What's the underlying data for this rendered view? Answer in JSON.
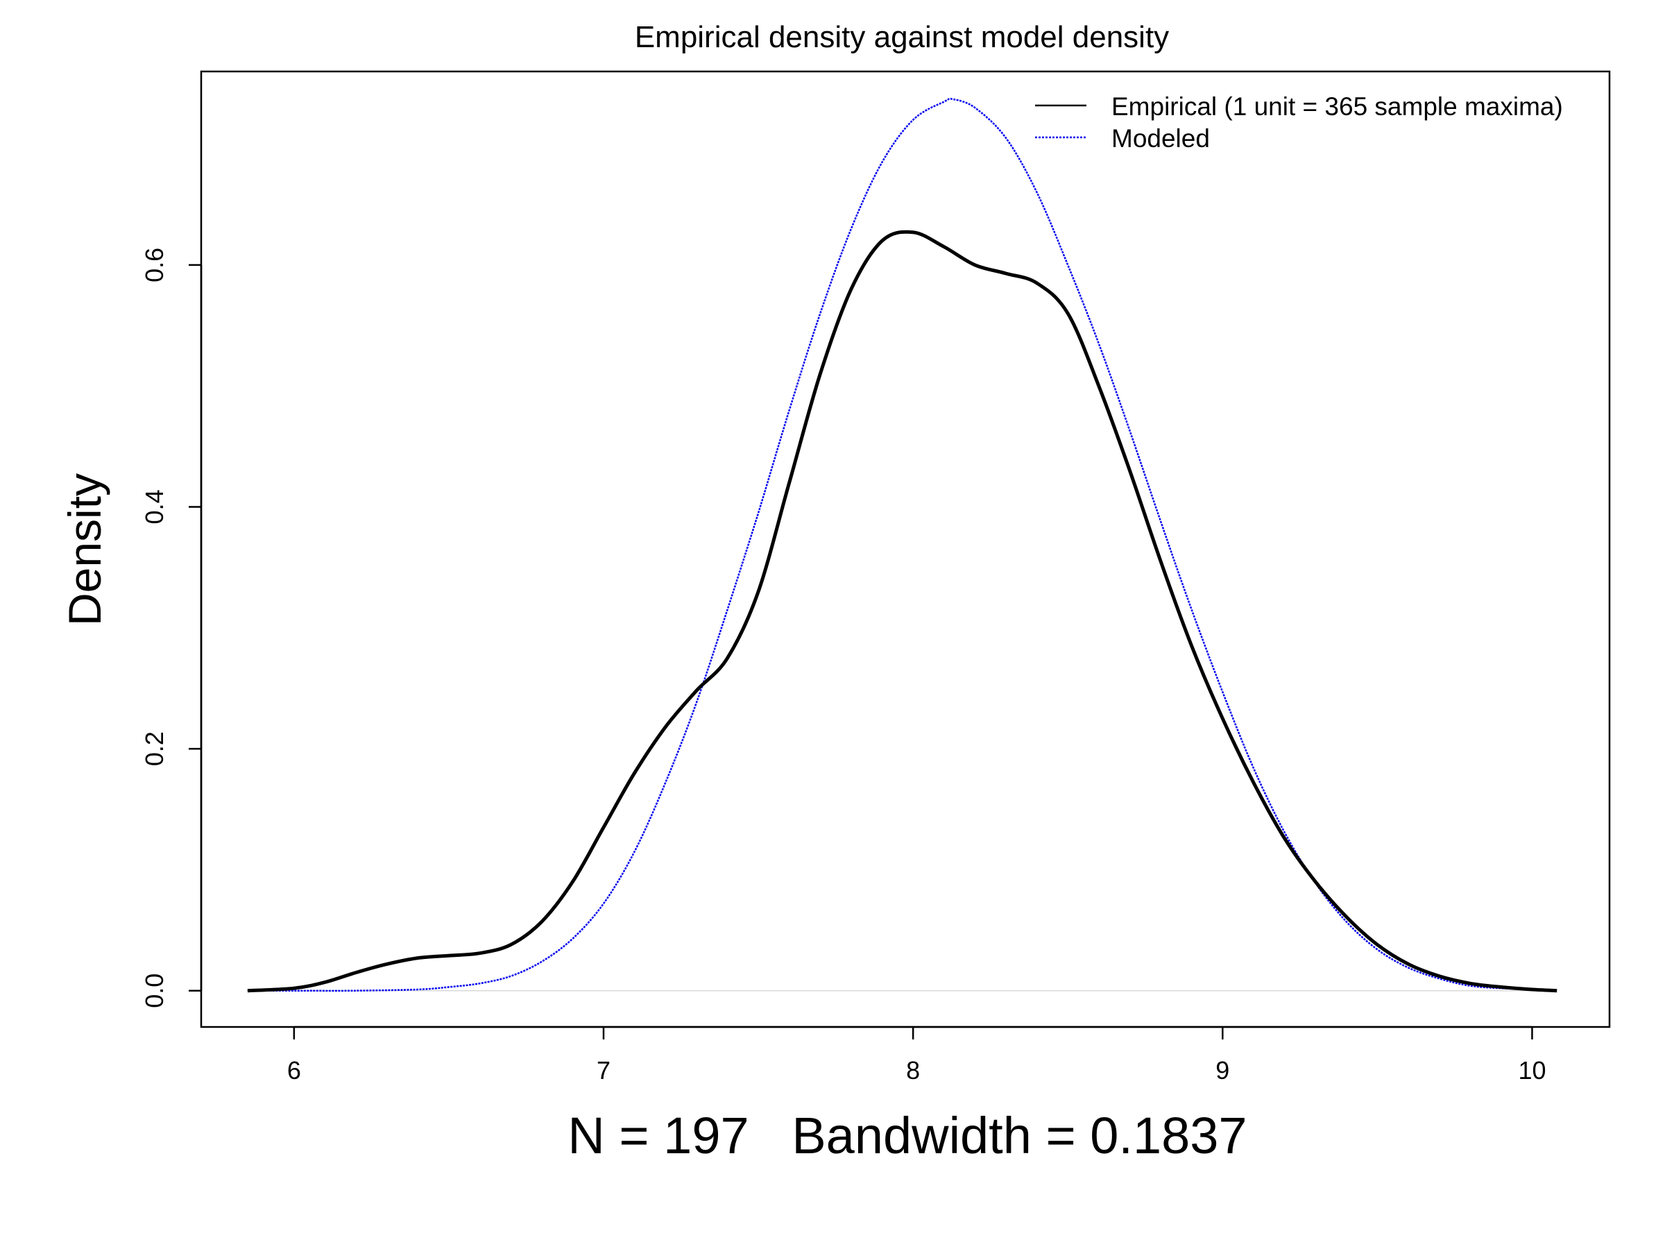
{
  "chart_data": {
    "type": "line",
    "title": "Empirical density against model density",
    "xlabel": "N = 197   Bandwidth = 0.1837",
    "ylabel": "Density",
    "xlim": [
      5.7,
      10.25
    ],
    "ylim": [
      -0.03,
      0.76
    ],
    "xticks": [
      6,
      7,
      8,
      9,
      10
    ],
    "xtick_labels": [
      "6",
      "7",
      "8",
      "9",
      "10"
    ],
    "yticks": [
      0.0,
      0.2,
      0.4,
      0.6
    ],
    "ytick_labels": [
      "0.0",
      "0.2",
      "0.4",
      "0.6"
    ],
    "grid": false,
    "zero_line": true,
    "legend_position": "top-right",
    "series": [
      {
        "name": "Empirical (1 unit = 365 sample maxima)",
        "color": "#000000",
        "line_style": "solid",
        "x": [
          5.85,
          6.0,
          6.1,
          6.2,
          6.3,
          6.4,
          6.5,
          6.6,
          6.7,
          6.8,
          6.9,
          7.0,
          7.1,
          7.2,
          7.3,
          7.4,
          7.5,
          7.6,
          7.7,
          7.8,
          7.9,
          8.0,
          8.1,
          8.2,
          8.3,
          8.4,
          8.5,
          8.6,
          8.7,
          8.8,
          8.9,
          9.0,
          9.1,
          9.2,
          9.3,
          9.4,
          9.5,
          9.6,
          9.7,
          9.8,
          9.9,
          10.0,
          10.08
        ],
        "y": [
          0.0,
          0.002,
          0.007,
          0.015,
          0.022,
          0.027,
          0.029,
          0.031,
          0.038,
          0.057,
          0.09,
          0.135,
          0.18,
          0.218,
          0.248,
          0.275,
          0.33,
          0.42,
          0.51,
          0.58,
          0.62,
          0.627,
          0.615,
          0.6,
          0.593,
          0.585,
          0.56,
          0.5,
          0.43,
          0.355,
          0.285,
          0.225,
          0.172,
          0.126,
          0.09,
          0.061,
          0.038,
          0.022,
          0.012,
          0.006,
          0.003,
          0.001,
          0.0
        ]
      },
      {
        "name": "Modeled",
        "color": "#0000ee",
        "line_style": "dotted",
        "x": [
          5.85,
          6.0,
          6.2,
          6.4,
          6.5,
          6.6,
          6.7,
          6.8,
          6.9,
          7.0,
          7.1,
          7.2,
          7.3,
          7.4,
          7.5,
          7.6,
          7.7,
          7.8,
          7.9,
          8.0,
          8.1,
          8.13,
          8.2,
          8.3,
          8.4,
          8.5,
          8.6,
          8.7,
          8.8,
          8.9,
          9.0,
          9.1,
          9.2,
          9.3,
          9.4,
          9.5,
          9.6,
          9.7,
          9.8,
          9.9,
          10.0,
          10.08
        ],
        "y": [
          0.0,
          0.0,
          0.0,
          0.001,
          0.003,
          0.006,
          0.012,
          0.024,
          0.043,
          0.072,
          0.115,
          0.172,
          0.238,
          0.315,
          0.395,
          0.48,
          0.56,
          0.63,
          0.685,
          0.72,
          0.735,
          0.737,
          0.73,
          0.705,
          0.66,
          0.6,
          0.535,
          0.463,
          0.388,
          0.315,
          0.247,
          0.184,
          0.131,
          0.089,
          0.057,
          0.034,
          0.019,
          0.01,
          0.004,
          0.002,
          0.001,
          0.0
        ]
      }
    ]
  }
}
